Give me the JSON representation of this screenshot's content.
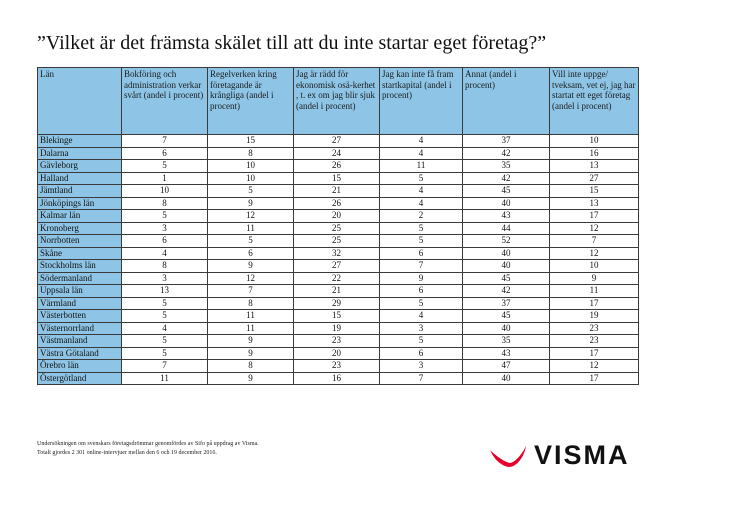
{
  "title": "”Vilket är det främsta skälet till att du inte startar eget företag?”",
  "table": {
    "columns": [
      "Län",
      "Bokföring och administration verkar svårt (andel i procent)",
      "Regelverken kring företagande är krångliga (andel i procent)",
      "Jag är rädd för ekonomisk osä-kerhet , t. ex om jag blir sjuk (andel i procent)",
      "Jag kan inte få fram startkapital (andel i procent)",
      "Annat (andel i procent)",
      "Vill inte uppge/ tveksam, vet ej, jag har startat ett eget företag (andel i procent)"
    ],
    "rows": [
      {
        "lan": "Blekinge",
        "v": [
          "7",
          "15",
          "27",
          "4",
          "37",
          "10"
        ]
      },
      {
        "lan": "Dalarna",
        "v": [
          "6",
          "8",
          "24",
          "4",
          "42",
          "16"
        ]
      },
      {
        "lan": "Gävleborg",
        "v": [
          "5",
          "10",
          "26",
          "11",
          "35",
          "13"
        ]
      },
      {
        "lan": "Halland",
        "v": [
          "1",
          "10",
          "15",
          "5",
          "42",
          "27"
        ]
      },
      {
        "lan": "Jämtland",
        "v": [
          "10",
          "5",
          "21",
          "4",
          "45",
          "15"
        ]
      },
      {
        "lan": "Jönköpings län",
        "v": [
          "8",
          "9",
          "26",
          "4",
          "40",
          "13"
        ]
      },
      {
        "lan": "Kalmar län",
        "v": [
          "5",
          "12",
          "20",
          "2",
          "43",
          "17"
        ]
      },
      {
        "lan": "Kronoberg",
        "v": [
          "3",
          "11",
          "25",
          "5",
          "44",
          "12"
        ]
      },
      {
        "lan": "Norrbotten",
        "v": [
          "6",
          "5",
          "25",
          "5",
          "52",
          "7"
        ]
      },
      {
        "lan": "Skåne",
        "v": [
          "4",
          "6",
          "32",
          "6",
          "40",
          "12"
        ]
      },
      {
        "lan": "Stockholms län",
        "v": [
          "8",
          "9",
          "27",
          "7",
          "40",
          "10"
        ]
      },
      {
        "lan": "Södermanland",
        "v": [
          "3",
          "12",
          "22",
          "9",
          "45",
          "9"
        ]
      },
      {
        "lan": "Uppsala län",
        "v": [
          "13",
          "7",
          "21",
          "6",
          "42",
          "11"
        ]
      },
      {
        "lan": "Värmland",
        "v": [
          "5",
          "8",
          "29",
          "5",
          "37",
          "17"
        ]
      },
      {
        "lan": "Västerbotten",
        "v": [
          "5",
          "11",
          "15",
          "4",
          "45",
          "19"
        ]
      },
      {
        "lan": "Västernorrland",
        "v": [
          "4",
          "11",
          "19",
          "3",
          "40",
          "23"
        ]
      },
      {
        "lan": "Västmanland",
        "v": [
          "5",
          "9",
          "23",
          "5",
          "35",
          "23"
        ]
      },
      {
        "lan": "Västra Götaland",
        "v": [
          "5",
          "9",
          "20",
          "6",
          "43",
          "17"
        ]
      },
      {
        "lan": "Örebro län",
        "v": [
          "7",
          "8",
          "23",
          "3",
          "47",
          "12"
        ]
      },
      {
        "lan": "Östergötland",
        "v": [
          "11",
          "9",
          "16",
          "7",
          "40",
          "17"
        ]
      }
    ]
  },
  "footnote": [
    "Undersökningen om svenskars företagsdrömmar genomfördes av Sifo på uppdrag av Visma.",
    "Totalt gjordes 2 301 online-intervjuer mellan den 6 och 19 december 2016."
  ],
  "logo": {
    "text": "VISMA",
    "icon": "visma-swoosh-icon",
    "color": "#e4002b"
  },
  "colors": {
    "header_bg": "#8ec5e6",
    "border": "#3a3a3a"
  }
}
